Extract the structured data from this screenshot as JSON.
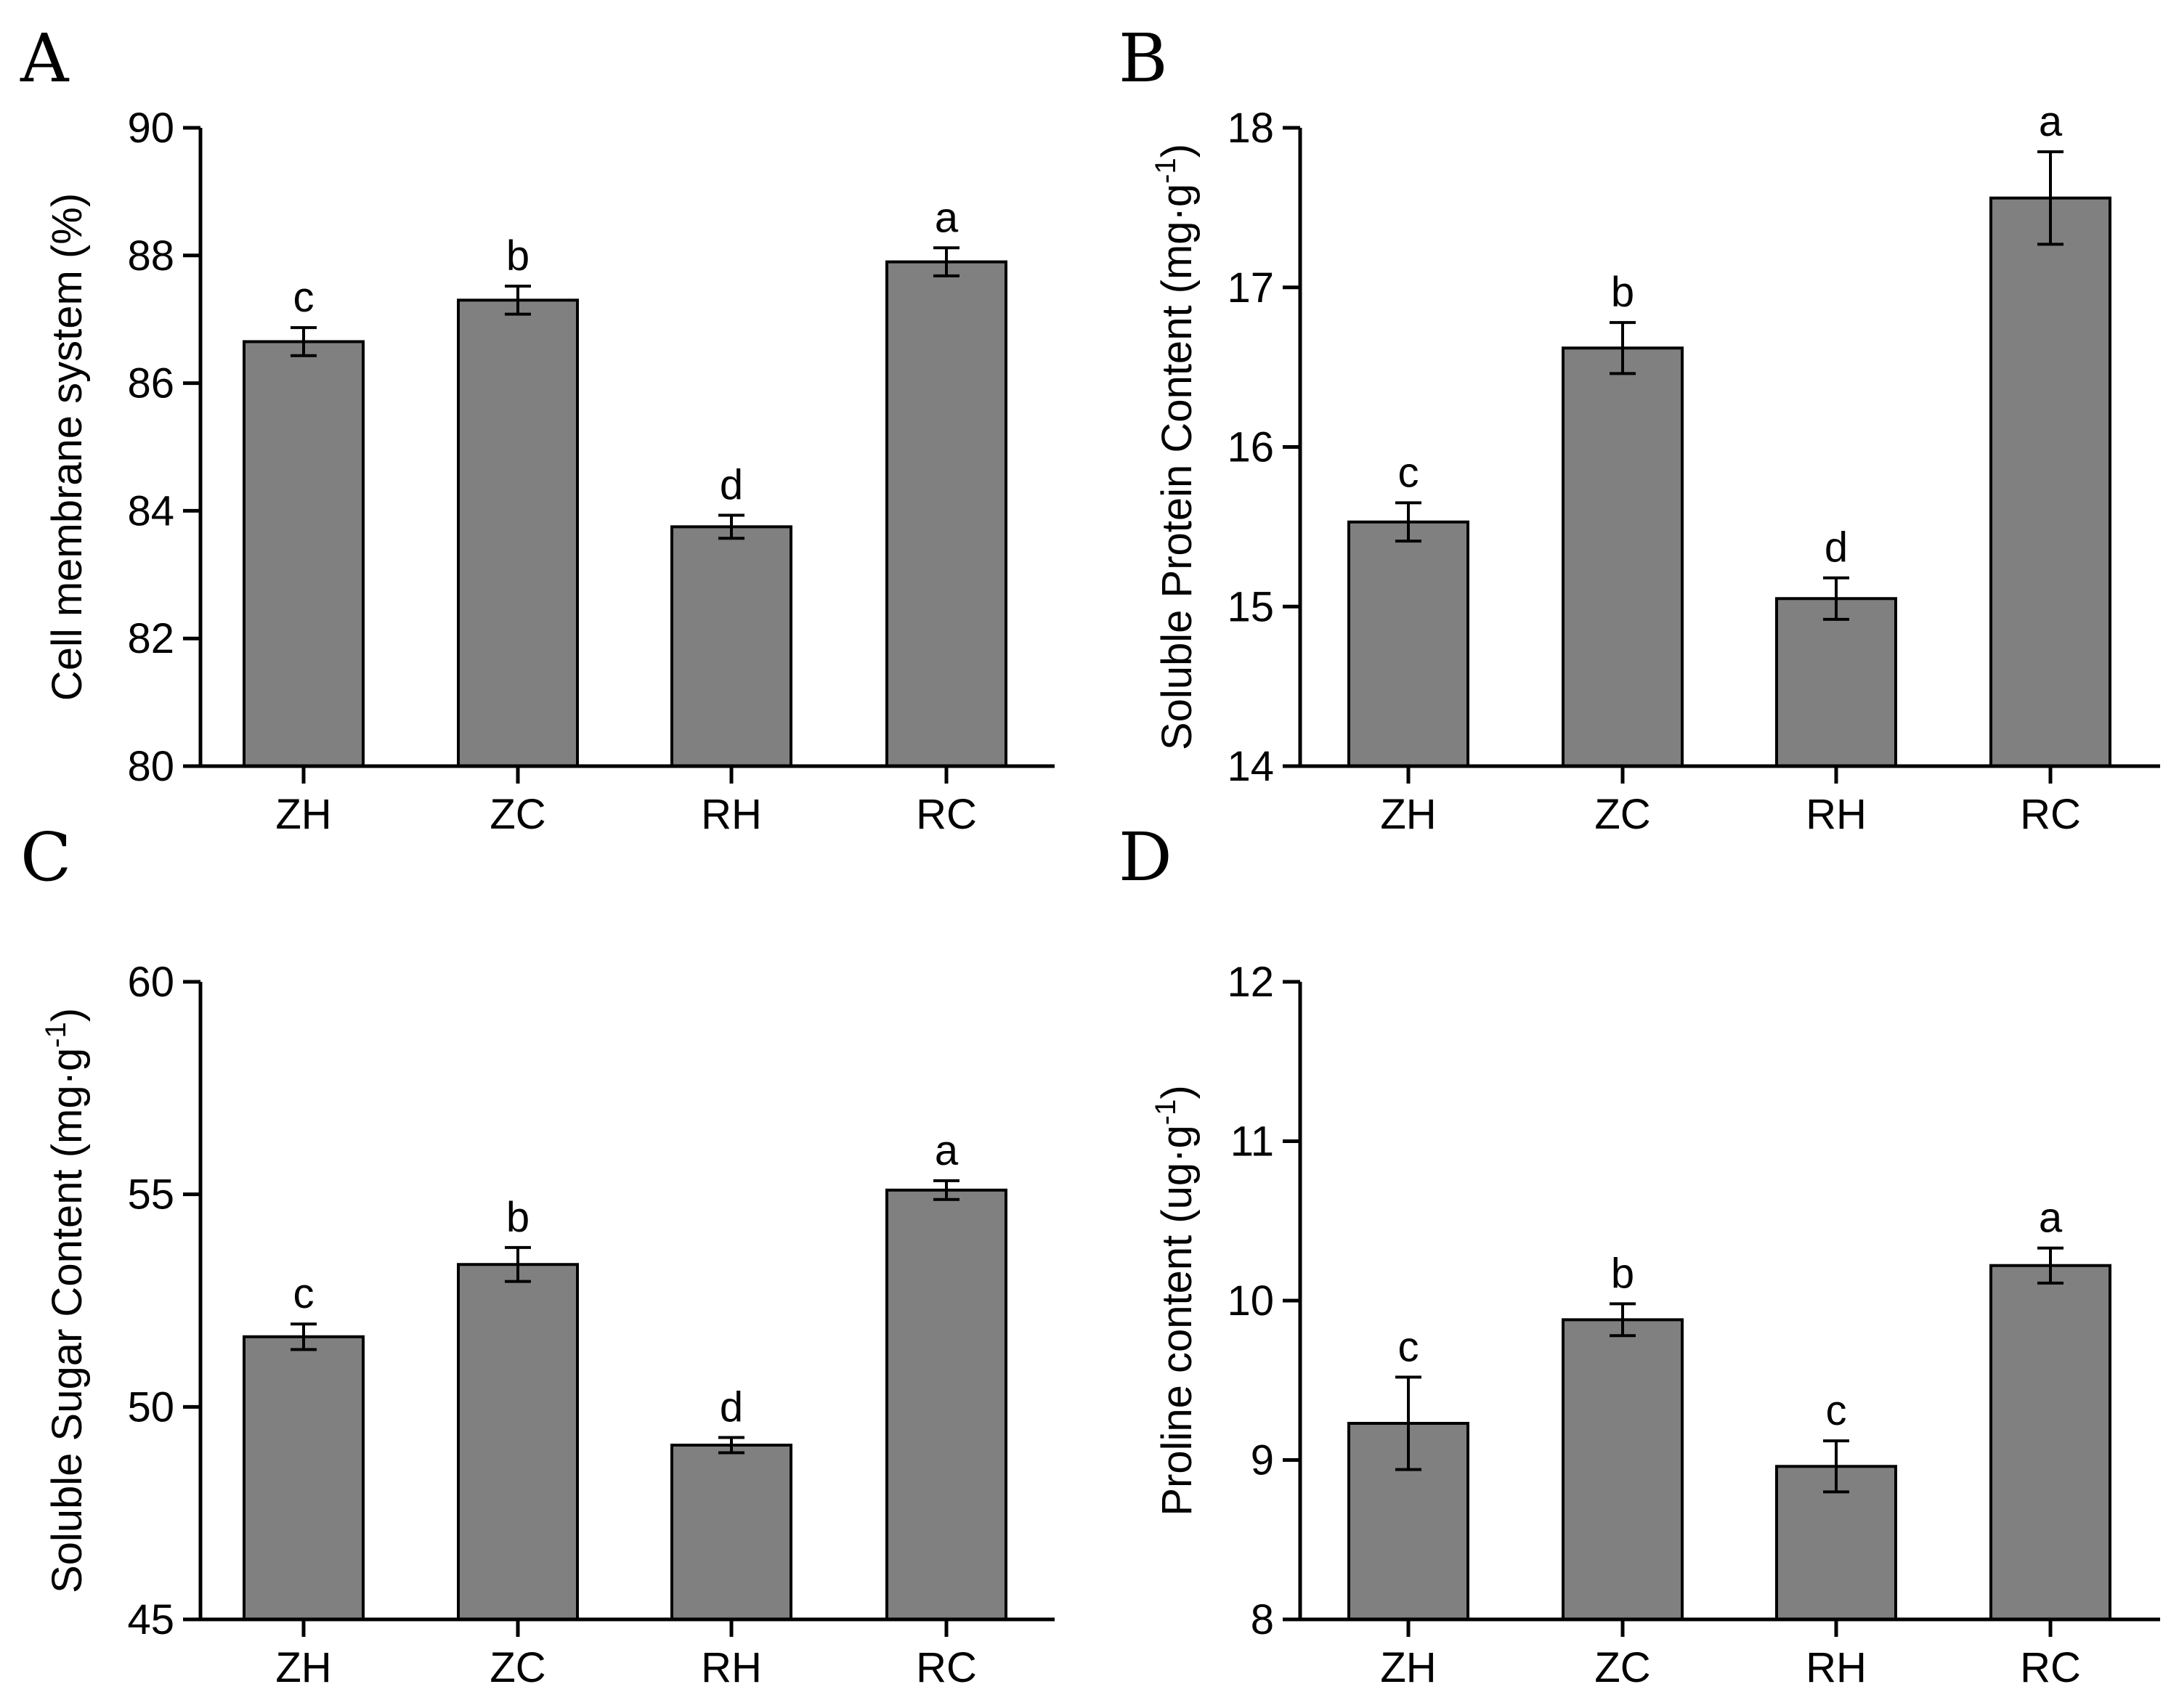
{
  "colors": {
    "bar_fill": "#808080",
    "axis": "#000000"
  },
  "chart_data": [
    {
      "panel": "A",
      "type": "bar",
      "categories": [
        "ZH",
        "ZC",
        "RH",
        "RC"
      ],
      "values": [
        86.65,
        87.3,
        83.75,
        87.9
      ],
      "errors": [
        0.22,
        0.22,
        0.18,
        0.22
      ],
      "labels": [
        "c",
        "b",
        "d",
        "a"
      ],
      "ylabel": "Cell membrane system (%)",
      "ylabel_sup": "",
      "ylabel_tail": "",
      "ylim": [
        80,
        90
      ],
      "yticks": [
        80,
        82,
        84,
        86,
        88,
        90
      ]
    },
    {
      "panel": "B",
      "type": "bar",
      "categories": [
        "ZH",
        "ZC",
        "RH",
        "RC"
      ],
      "values": [
        15.53,
        16.62,
        15.05,
        17.56
      ],
      "errors": [
        0.12,
        0.16,
        0.13,
        0.29
      ],
      "labels": [
        "c",
        "b",
        "d",
        "a"
      ],
      "ylabel": "Soluble Protein Content (mg·g",
      "ylabel_sup": "-1",
      "ylabel_tail": ")",
      "ylim": [
        14,
        18
      ],
      "yticks": [
        14,
        15,
        16,
        17,
        18
      ]
    },
    {
      "panel": "C",
      "type": "bar",
      "categories": [
        "ZH",
        "ZC",
        "RH",
        "RC"
      ],
      "values": [
        51.65,
        53.35,
        49.1,
        55.1
      ],
      "errors": [
        0.3,
        0.4,
        0.18,
        0.22
      ],
      "labels": [
        "c",
        "b",
        "d",
        "a"
      ],
      "ylabel": "Soluble Sugar Content (mg·g",
      "ylabel_sup": "-1",
      "ylabel_tail": ")",
      "ylim": [
        45,
        60
      ],
      "yticks": [
        45,
        50,
        55,
        60
      ]
    },
    {
      "panel": "D",
      "type": "bar",
      "categories": [
        "ZH",
        "ZC",
        "RH",
        "RC"
      ],
      "values": [
        9.23,
        9.88,
        8.96,
        10.22
      ],
      "errors": [
        0.29,
        0.1,
        0.16,
        0.11
      ],
      "labels": [
        "c",
        "b",
        "c",
        "a"
      ],
      "ylabel": "Proline content (ug·g",
      "ylabel_sup": "-1",
      "ylabel_tail": ")",
      "ylim": [
        8,
        12
      ],
      "yticks": [
        8,
        9,
        10,
        11,
        12
      ]
    }
  ]
}
